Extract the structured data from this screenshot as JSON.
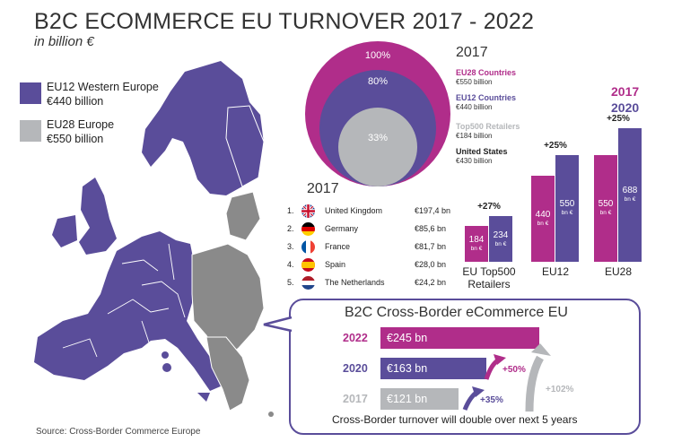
{
  "header": {
    "title": "B2C ECOMMERCE EU TURNOVER 2017 - 2022",
    "subtitle": "in billion €"
  },
  "legend": {
    "eu12": {
      "name": "EU12 Western Europe",
      "value": "€440 billion",
      "color": "#5a4d9a"
    },
    "eu28": {
      "name": "EU28 Europe",
      "value": "€550 billion",
      "color": "#b5b7ba"
    }
  },
  "source": "Source: Cross-Border Commerce Europe",
  "chart_data": [
    {
      "type": "pie",
      "year": "2017",
      "circles": [
        {
          "label": "100%",
          "value": 100,
          "color": "#b02d8a"
        },
        {
          "label": "80%",
          "value": 80,
          "color": "#5a4d9a"
        },
        {
          "label": "33%",
          "value": 33,
          "color": "#b5b7ba"
        }
      ],
      "legend": [
        {
          "name": "EU28 Countries",
          "value": "€550 billion",
          "color": "#b02d8a"
        },
        {
          "name": "EU12 Countries",
          "value": "€440 billion",
          "color": "#5a4d9a"
        },
        {
          "name": "Top500 Retailers",
          "value": "€184 billion",
          "color": "#b5b7ba"
        },
        {
          "name": "United States",
          "value": "€430 billion",
          "color": "#222222"
        }
      ]
    },
    {
      "type": "table",
      "title": "2017",
      "rows": [
        {
          "rank": "1.",
          "country": "United Kingdom",
          "value": "€197,4 bn",
          "flag": "uk-flag"
        },
        {
          "rank": "2.",
          "country": "Germany",
          "value": "€85,6 bn",
          "flag": "germany-flag"
        },
        {
          "rank": "3.",
          "country": "France",
          "value": "€81,7 bn",
          "flag": "france-flag"
        },
        {
          "rank": "4.",
          "country": "Spain",
          "value": "€28,0 bn",
          "flag": "spain-flag"
        },
        {
          "rank": "5.",
          "country": "The Netherlands",
          "value": "€24,2 bn",
          "flag": "netherlands-flag"
        }
      ]
    },
    {
      "type": "bar",
      "categories": [
        "EU Top500 Retailers",
        "EU12",
        "EU28"
      ],
      "legend_years": [
        "2017",
        "2020"
      ],
      "series": [
        {
          "name": "2017",
          "values": [
            184,
            440,
            550
          ],
          "color": "#b02d8a"
        },
        {
          "name": "2020",
          "values": [
            234,
            550,
            688
          ],
          "color": "#5a4d9a"
        }
      ],
      "value_labels": [
        [
          "184",
          "234"
        ],
        [
          "440",
          "550"
        ],
        [
          "550",
          "688"
        ]
      ],
      "unit_label": "bn €",
      "growth": [
        "+27%",
        "+25%",
        "+25%"
      ],
      "ylim": [
        0,
        700
      ]
    },
    {
      "type": "bar",
      "title": "B2C Cross-Border eCommerce EU",
      "categories": [
        "2022",
        "2020",
        "2017"
      ],
      "values": [
        245,
        163,
        121
      ],
      "value_labels": [
        "€245 bn",
        "€163 bn",
        "€121 bn"
      ],
      "colors": [
        "#b02d8a",
        "#5a4d9a",
        "#b5b7ba"
      ],
      "growth": [
        "+50%",
        "+35%",
        "+102%"
      ],
      "footnote": "Cross-Border turnover will double over next 5 years"
    }
  ]
}
